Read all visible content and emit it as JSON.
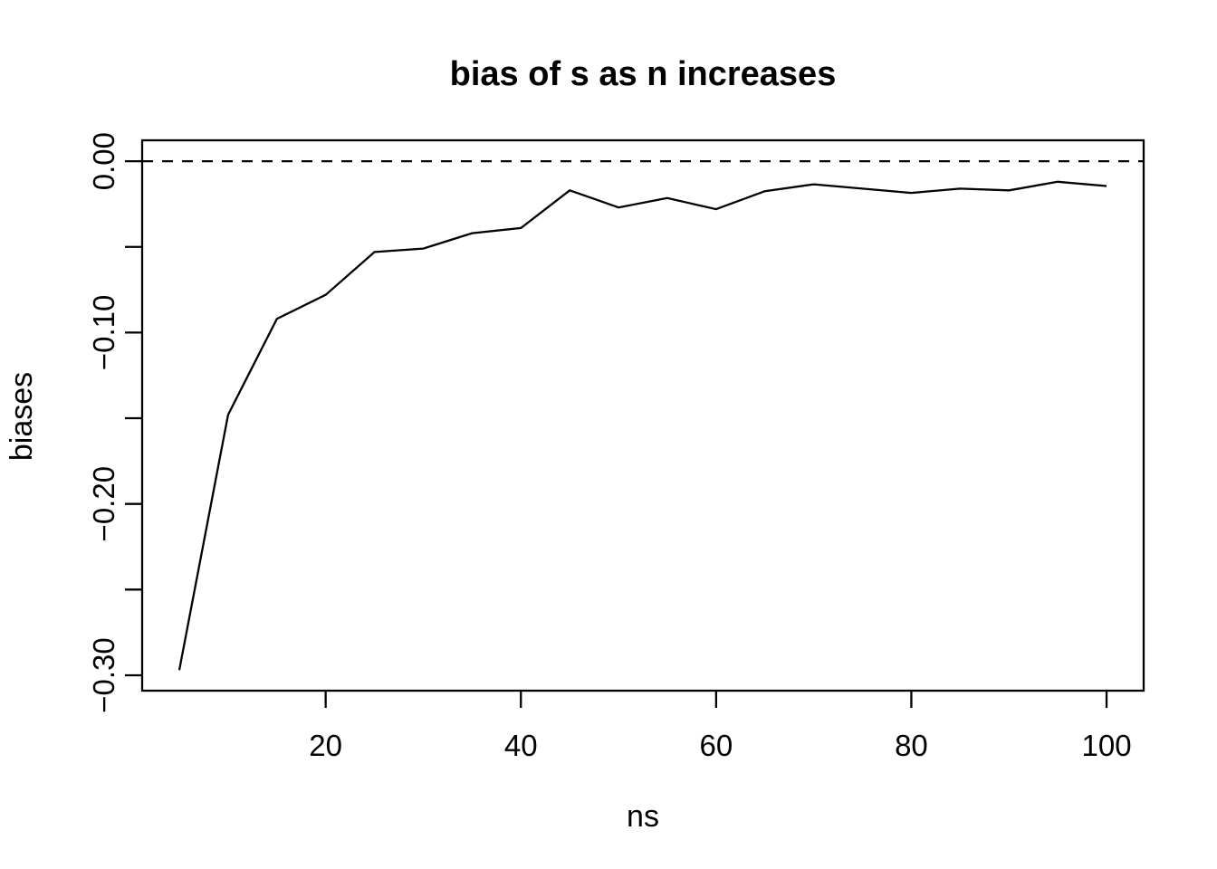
{
  "page": {
    "background_color": "#ffffff",
    "foreground_color": "#000000"
  },
  "chart_data": {
    "type": "line",
    "title": "bias of s as n increases",
    "xlabel": "ns",
    "ylabel": "biases",
    "x": [
      5,
      10,
      15,
      20,
      25,
      30,
      35,
      40,
      45,
      50,
      55,
      60,
      65,
      70,
      75,
      80,
      85,
      90,
      95,
      100
    ],
    "series": [
      {
        "name": "bias of s",
        "color": "#000000",
        "values": [
          -0.297,
          -0.148,
          -0.092,
          -0.078,
          -0.053,
          -0.051,
          -0.042,
          -0.039,
          -0.017,
          -0.027,
          -0.0215,
          -0.028,
          -0.0175,
          -0.0135,
          -0.016,
          -0.0185,
          -0.016,
          -0.017,
          -0.012,
          -0.0145
        ]
      }
    ],
    "xlim": [
      1.2,
      103.8
    ],
    "ylim": [
      -0.309,
      0.0122
    ],
    "x_ticks": [
      {
        "value": 20,
        "label": "20"
      },
      {
        "value": 40,
        "label": "40"
      },
      {
        "value": 60,
        "label": "60"
      },
      {
        "value": 80,
        "label": "80"
      },
      {
        "value": 100,
        "label": "100"
      }
    ],
    "y_ticks": [
      {
        "value": 0.0,
        "label": "0.00"
      },
      {
        "value": -0.05,
        "label": ""
      },
      {
        "value": -0.1,
        "label": "−0.10"
      },
      {
        "value": -0.15,
        "label": ""
      },
      {
        "value": -0.2,
        "label": "−0.20"
      },
      {
        "value": -0.25,
        "label": ""
      },
      {
        "value": -0.3,
        "label": "−0.30"
      }
    ],
    "reference_line": {
      "y": 0,
      "style": "dashed",
      "color": "#000000"
    },
    "grid": false,
    "legend": "none"
  }
}
